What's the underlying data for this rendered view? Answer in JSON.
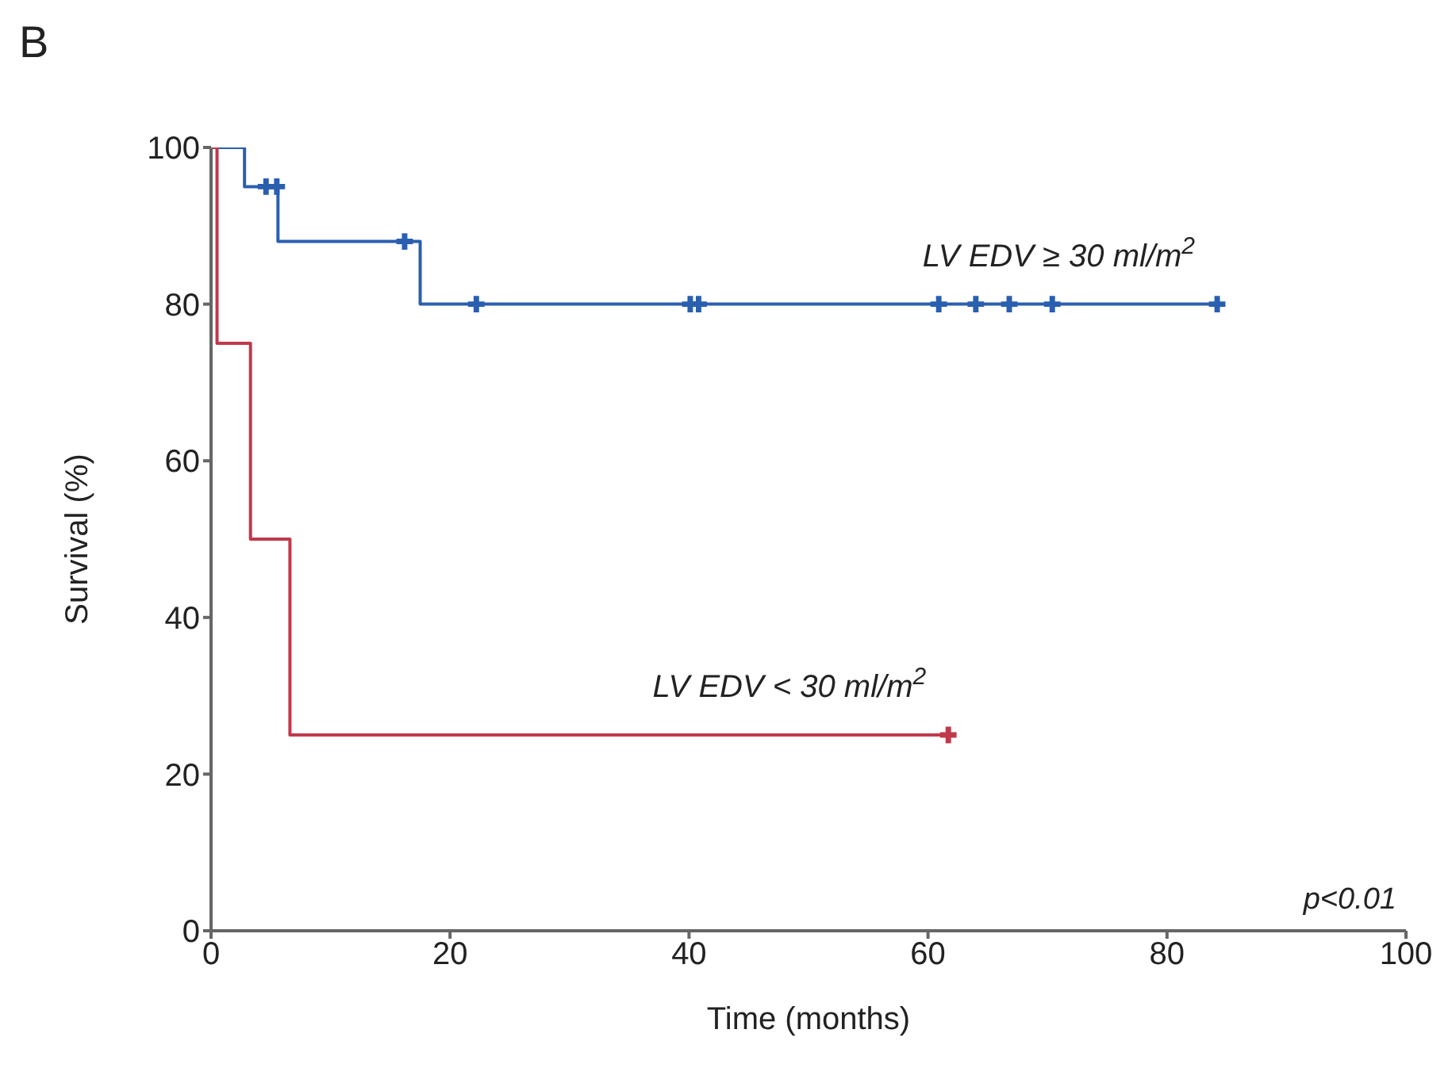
{
  "chart_data": {
    "type": "step",
    "xlabel": "Time (months)",
    "ylabel": "Survival (%)",
    "annotations": [
      "B",
      "p<0.01"
    ],
    "xlim": [
      0,
      100
    ],
    "ylim": [
      0,
      100
    ],
    "xticks": [
      0,
      20,
      40,
      60,
      80,
      100
    ],
    "yticks": [
      0,
      20,
      40,
      60,
      80,
      100
    ],
    "grid": false,
    "legend": false,
    "series": [
      {
        "name": "LV EDV ≥ 30 ml/m$^{2}$",
        "color": "#2a5fb0",
        "x": [
          0,
          2.8,
          5.6,
          17.5,
          84.2
        ],
        "values": [
          100,
          95,
          88,
          80,
          80
        ]
      },
      {
        "name": "LV EDV < 30 ml/m$^{2}$",
        "color": "#c0394b",
        "x": [
          0,
          0.5,
          3.3,
          6.6,
          61.7
        ],
        "values": [
          100,
          75,
          50,
          25,
          25
        ]
      },
      {
        "type": "scatter",
        "marker": "cross",
        "color": "#2a5fb0",
        "x": [
          4.6,
          5.5,
          16.2,
          22.2,
          40.1,
          40.8,
          60.9,
          64,
          66.8,
          70.4,
          84.2
        ],
        "values": [
          95,
          95,
          88,
          80,
          80,
          80,
          80,
          80,
          80,
          80,
          80
        ]
      },
      {
        "type": "scatter",
        "marker": "cross",
        "color": "#c0394b",
        "x": [
          61.7
        ],
        "values": [
          25
        ]
      }
    ]
  }
}
